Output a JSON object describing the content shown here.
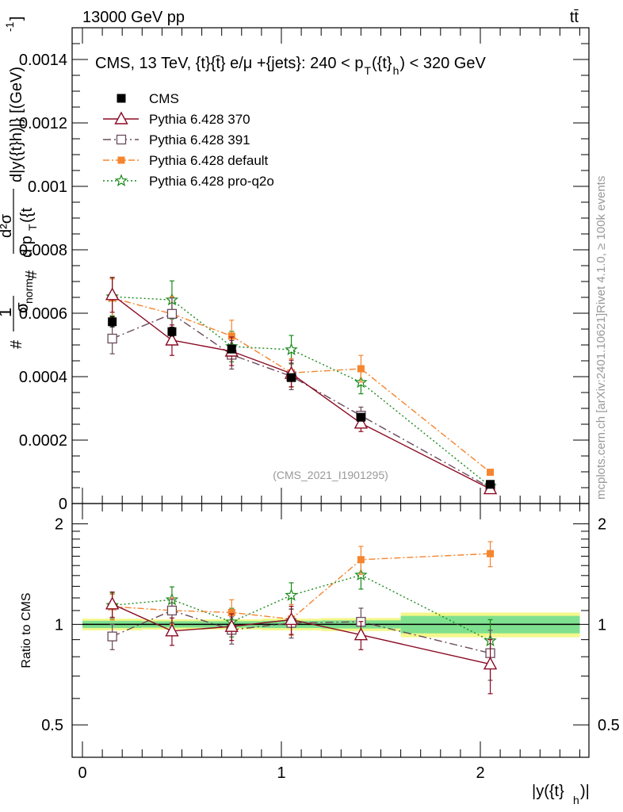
{
  "header": {
    "left": "13000 GeV pp",
    "right": "tt̄"
  },
  "side": {
    "rivet": "Rivet 4.1.0, ≥ 100k events",
    "mcplots": "mcplots.cern.ch [arXiv:2401.10621]"
  },
  "colors": {
    "CMS": "#000000",
    "p370": "#8b0a23",
    "p391": "#6a4a5c",
    "pdefault": "#f5852e",
    "pq2o": "#1a8a1a",
    "band_outer": "#f4f78a",
    "band_inner": "#7fe08f"
  },
  "chart_data": [
    {
      "type": "scatter",
      "title": "CMS, 13 TeV, {t}{t̄} e/μ +{jets}: 240 <  p_T({t}_h) < 320 GeV",
      "title_main": "CMS, 13 TeV, {t}{t̄} e/μ +{jets}: 240 <  p",
      "title_sub1": "T",
      "title_mid": "({t}",
      "title_sub2": "h",
      "title_end": ") < 320 GeV",
      "watermark": "(CMS_2021_I1901295)",
      "ylabel": "1/σnorm d²σ / d pT({t}h) d|y({t}h)| [(GeV)⁻¹]",
      "ylabel_parts": {
        "hash1": "#",
        "one": "1",
        "sigma_norm": "σ",
        "norm": "norm",
        "hash2": "#",
        "num": "d²σ",
        "den1": "d p",
        "den2": "({t",
        "right": "d|y({t}h)|} [(GeV)",
        "exp": "-1",
        "close": "]"
      },
      "ylim": [
        0,
        0.0015
      ],
      "y_ticks": [
        0,
        0.0002,
        0.0004,
        0.0006,
        0.0008,
        0.001,
        0.0012,
        0.0014
      ],
      "y_tick_labels": [
        "0",
        "0.0002",
        "0.0004",
        "0.0006",
        "0.0008",
        "0.001",
        "0.0012",
        "0.0014"
      ],
      "x": [
        0.15,
        0.45,
        0.75,
        1.05,
        1.4,
        2.05
      ],
      "series": [
        {
          "key": "CMS",
          "name": "CMS",
          "marker": "square-filled",
          "values": [
            0.000573,
            0.000542,
            0.000487,
            0.000397,
            0.000272,
            6.05e-05
          ],
          "errors": [
            1.6e-05,
            1.4e-05,
            1.2e-05,
            1e-05,
            8e-06,
            4e-06
          ]
        },
        {
          "key": "p370",
          "name": "Pythia 6.428 370",
          "marker": "triangle-open",
          "dash": "",
          "values": [
            0.000658,
            0.000515,
            0.00048,
            0.00041,
            0.000253,
            4.6e-05
          ],
          "errors": [
            5.5e-05,
            4.8e-05,
            4.5e-05,
            4.2e-05,
            2.6e-05,
            8e-06
          ]
        },
        {
          "key": "p391",
          "name": "Pythia 6.428 391",
          "marker": "square-open",
          "dash": "10,4,2,4",
          "values": [
            0.00052,
            0.000598,
            0.000469,
            0.000401,
            0.000277,
            4.97e-05
          ],
          "errors": [
            4.8e-05,
            5e-05,
            4.5e-05,
            4.2e-05,
            2.7e-05,
            8e-06
          ]
        },
        {
          "key": "pdefault",
          "name": "Pythia 6.428 default",
          "marker": "square-filled-small",
          "dash": "8,3,2,3",
          "values": [
            0.000648,
            0.000598,
            0.000528,
            0.000412,
            0.000425,
            9.85e-05
          ],
          "errors": [
            6e-05,
            5.5e-05,
            5e-05,
            4.5e-05,
            4.2e-05,
            8e-06
          ]
        },
        {
          "key": "pq2o",
          "name": "Pythia 6.428 pro-q2o",
          "marker": "star",
          "dash": "2,3",
          "values": [
            0.000652,
            0.000642,
            0.000495,
            0.000485,
            0.000382,
            5.4e-05
          ],
          "errors": [
            6e-05,
            6e-05,
            4.8e-05,
            4.5e-05,
            3.6e-05,
            8e-06
          ]
        }
      ]
    },
    {
      "type": "scatter",
      "ylabel": "Ratio to CMS",
      "xlabel_main": "|y({t}",
      "xlabel_sub": "h",
      "xlabel_end": ")|",
      "xlim": [
        -0.1,
        2.6
      ],
      "x_ticks": [
        0,
        1,
        2
      ],
      "x_tick_labels": [
        "0",
        "1",
        "2"
      ],
      "ylim_log": [
        0.4,
        2.3
      ],
      "y_ticks": [
        0.5,
        1,
        2
      ],
      "y_tick_labels": [
        "0.5",
        "1",
        "2"
      ],
      "x": [
        0.15,
        0.45,
        0.75,
        1.05,
        1.4,
        2.05
      ],
      "x_edges": [
        0,
        0.3,
        0.6,
        0.9,
        1.2,
        1.6,
        2.5
      ],
      "band_outer": [
        0.04,
        0.035,
        0.035,
        0.04,
        0.045,
        0.085
      ],
      "band_inner": [
        0.025,
        0.022,
        0.022,
        0.025,
        0.028,
        0.06
      ],
      "series": [
        {
          "key": "p370",
          "values": [
            1.15,
            0.955,
            0.985,
            1.033,
            0.93,
            0.76
          ],
          "errors": [
            0.1,
            0.09,
            0.09,
            0.1,
            0.09,
            0.14
          ]
        },
        {
          "key": "p391",
          "values": [
            0.92,
            1.1,
            0.963,
            1.01,
            1.018,
            0.82
          ],
          "errors": [
            0.08,
            0.09,
            0.09,
            0.1,
            0.1,
            0.14
          ]
        },
        {
          "key": "pdefault",
          "values": [
            1.13,
            1.1,
            1.085,
            1.037,
            1.562,
            1.628
          ],
          "errors": [
            0.1,
            0.1,
            0.1,
            0.11,
            0.15,
            0.14
          ]
        },
        {
          "key": "pq2o",
          "values": [
            1.14,
            1.185,
            1.017,
            1.222,
            1.405,
            0.893
          ],
          "errors": [
            0.1,
            0.11,
            0.1,
            0.11,
            0.13,
            0.14
          ]
        }
      ]
    }
  ]
}
